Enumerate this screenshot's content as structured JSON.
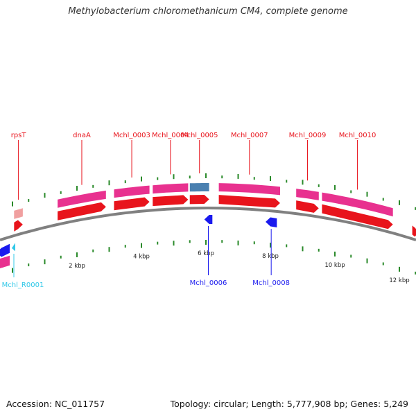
{
  "title": "Methylobacterium chloromethanicum CM4, complete genome",
  "footer": {
    "accession": "Accession: NC_011757",
    "summary": "Topology: circular; Length: 5,777,908 bp; Genes: 5,249"
  },
  "colors": {
    "cds_forward": "#e8141c",
    "cds_reverse": "#1a1aee",
    "gene_track": "#e8318f",
    "gene_feature_pale": "#f0a0a0",
    "highlight_feature": "#4a80b0",
    "rna_feature": "#30c8e8",
    "tick_mark": "#2a8a2a",
    "backbone": "#808080"
  },
  "scale": {
    "unit": "kbp",
    "labels": [
      "2 kbp",
      "4 kbp",
      "6 kbp",
      "8 kbp",
      "10 kbp",
      "12 kbp"
    ]
  },
  "features": {
    "forward_labels": [
      {
        "name": "rpsT",
        "start_kbp": 0.05,
        "end_kbp": 0.32
      },
      {
        "name": "dnaA",
        "start_kbp": 1.4,
        "end_kbp": 2.9
      },
      {
        "name": "Mchl_0003",
        "start_kbp": 3.15,
        "end_kbp": 4.25
      },
      {
        "name": "Mchl_0004",
        "start_kbp": 4.35,
        "end_kbp": 5.45
      },
      {
        "name": "Mchl_0005",
        "start_kbp": 5.5,
        "end_kbp": 6.1
      },
      {
        "name": "Mchl_0007",
        "start_kbp": 6.4,
        "end_kbp": 8.3
      },
      {
        "name": "Mchl_0009",
        "start_kbp": 8.8,
        "end_kbp": 9.5
      },
      {
        "name": "Mchl_0010",
        "start_kbp": 9.6,
        "end_kbp": 11.8
      }
    ],
    "reverse_labels": [
      {
        "name": "Mchl_R0001",
        "start_kbp": -0.1,
        "end_kbp": 0.0
      },
      {
        "name": "Mchl_0006",
        "start_kbp": 5.95,
        "end_kbp": 6.2
      },
      {
        "name": "Mchl_0008",
        "start_kbp": 7.85,
        "end_kbp": 8.2
      }
    ]
  }
}
